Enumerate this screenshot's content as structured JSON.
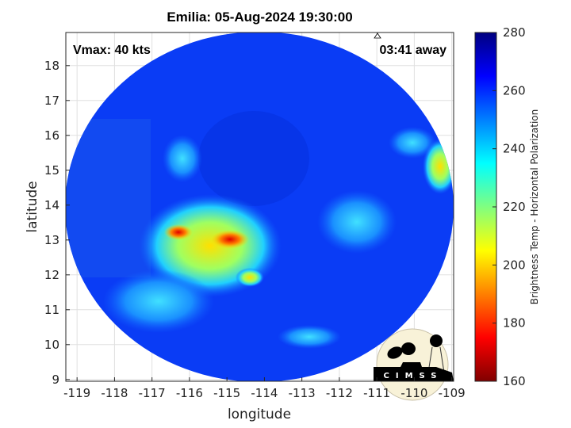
{
  "title": "Emilia: 05-Aug-2024 19:30:00",
  "annotations": {
    "vmax": "Vmax: 40 kts",
    "away": "03:41 away"
  },
  "axes": {
    "xlabel": "longitude",
    "ylabel": "latitude",
    "xticks": [
      "-119",
      "-118",
      "-117",
      "-116",
      "-115",
      "-114",
      "-113",
      "-112",
      "-111",
      "-110",
      "-109"
    ],
    "yticks": [
      "18",
      "17",
      "16",
      "15",
      "14",
      "13",
      "12",
      "11",
      "10",
      "9"
    ],
    "xlim": [
      -119.3,
      -108.95
    ],
    "ylim": [
      8.95,
      18.95
    ],
    "grid": true
  },
  "colorbar": {
    "label": "Brightness Temp - Horizontal Polarization",
    "ticks": [
      "280",
      "260",
      "240",
      "220",
      "200",
      "180",
      "160"
    ],
    "range": [
      160,
      280
    ],
    "colormap": "jet"
  },
  "logo": {
    "text": "CIMSS"
  }
}
